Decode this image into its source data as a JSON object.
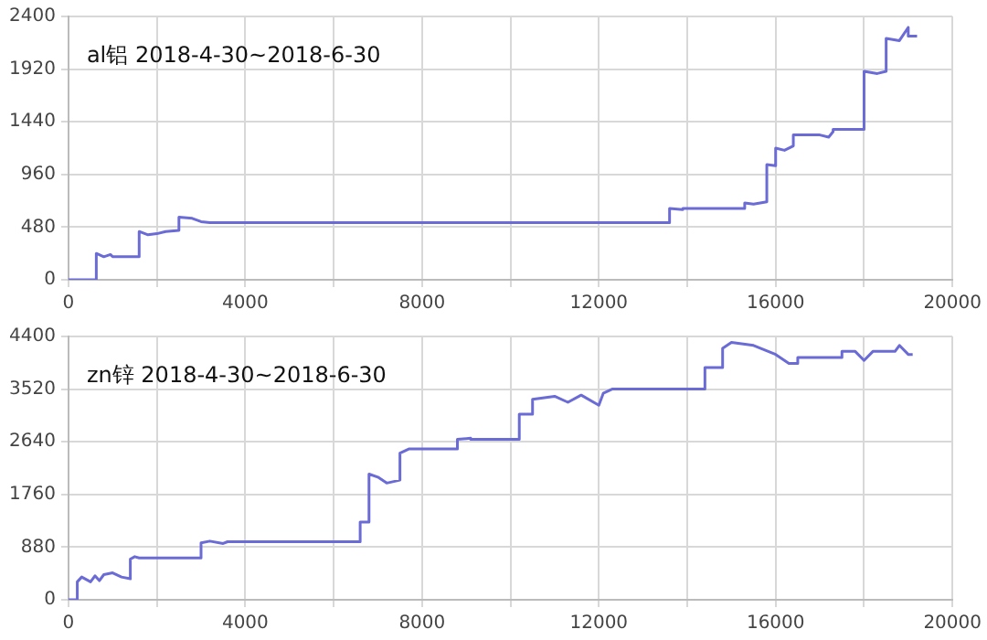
{
  "chart_data": [
    {
      "type": "line",
      "title": "al铝 2018-4-30~2018-6-30",
      "marker": "none",
      "grid": true,
      "legend": false,
      "xlim": [
        0,
        20000
      ],
      "xticks": [
        0,
        {
          "value": 2000,
          "label": null
        },
        4000,
        {
          "value": 6000,
          "label": null
        },
        8000,
        {
          "value": 10000,
          "label": null
        },
        12000,
        {
          "value": 14000,
          "label": null
        },
        16000,
        {
          "value": 18000,
          "label": null
        },
        20000
      ],
      "ylim": [
        0,
        2400
      ],
      "yticks": [
        0,
        480,
        960,
        1440,
        1920,
        2400
      ],
      "series": [
        {
          "color": "#6b6bd6",
          "x": [
            0,
            630,
            630,
            800,
            950,
            1000,
            1600,
            1600,
            1800,
            2000,
            2200,
            2500,
            2500,
            2800,
            3000,
            3200,
            3200,
            13600,
            13600,
            13900,
            13900,
            15300,
            15300,
            15500,
            15800,
            15800,
            16000,
            16000,
            16200,
            16400,
            16400,
            17000,
            17200,
            17300,
            17300,
            18000,
            18000,
            18300,
            18500,
            18500,
            18800,
            19000,
            19000,
            19200
          ],
          "values": [
            0,
            0,
            240,
            210,
            230,
            210,
            210,
            440,
            410,
            420,
            440,
            450,
            570,
            560,
            530,
            520,
            520,
            520,
            650,
            640,
            650,
            650,
            700,
            690,
            710,
            1050,
            1040,
            1200,
            1180,
            1220,
            1320,
            1320,
            1300,
            1350,
            1370,
            1370,
            1900,
            1880,
            1900,
            2200,
            2180,
            2300,
            2220,
            2220
          ]
        }
      ]
    },
    {
      "type": "line",
      "title": "zn锌 2018-4-30~2018-6-30",
      "marker": "none",
      "grid": true,
      "legend": false,
      "xlim": [
        0,
        20000
      ],
      "xticks": [
        0,
        {
          "value": 2000,
          "label": null
        },
        4000,
        {
          "value": 6000,
          "label": null
        },
        8000,
        {
          "value": 10000,
          "label": null
        },
        12000,
        {
          "value": 14000,
          "label": null
        },
        16000,
        {
          "value": 18000,
          "label": null
        },
        20000
      ],
      "ylim": [
        0,
        4400
      ],
      "yticks": [
        0,
        880,
        1760,
        2640,
        3520,
        4400
      ],
      "series": [
        {
          "color": "#6b6bd6",
          "x": [
            0,
            200,
            200,
            300,
            500,
            600,
            700,
            800,
            1000,
            1200,
            1400,
            1400,
            1500,
            1600,
            3000,
            3000,
            3200,
            3500,
            3600,
            6600,
            6600,
            6800,
            6800,
            7000,
            7200,
            7500,
            7500,
            7700,
            7900,
            8800,
            8800,
            9100,
            9100,
            10200,
            10200,
            10500,
            10500,
            11000,
            11300,
            11600,
            12000,
            12100,
            12300,
            14400,
            14400,
            14800,
            14800,
            15000,
            15500,
            16000,
            16300,
            16500,
            16500,
            17500,
            17500,
            17800,
            18000,
            18200,
            18700,
            18800,
            19000,
            19100
          ],
          "values": [
            0,
            0,
            300,
            380,
            300,
            400,
            320,
            420,
            450,
            380,
            350,
            680,
            720,
            700,
            700,
            950,
            980,
            940,
            970,
            970,
            1300,
            1300,
            2100,
            2050,
            1950,
            2000,
            2450,
            2520,
            2520,
            2520,
            2680,
            2700,
            2680,
            2680,
            3100,
            3100,
            3350,
            3400,
            3300,
            3420,
            3250,
            3450,
            3520,
            3520,
            3880,
            3880,
            4200,
            4300,
            4250,
            4100,
            3950,
            3950,
            4050,
            4050,
            4150,
            4150,
            4000,
            4150,
            4150,
            4250,
            4100,
            4100
          ]
        }
      ]
    }
  ]
}
